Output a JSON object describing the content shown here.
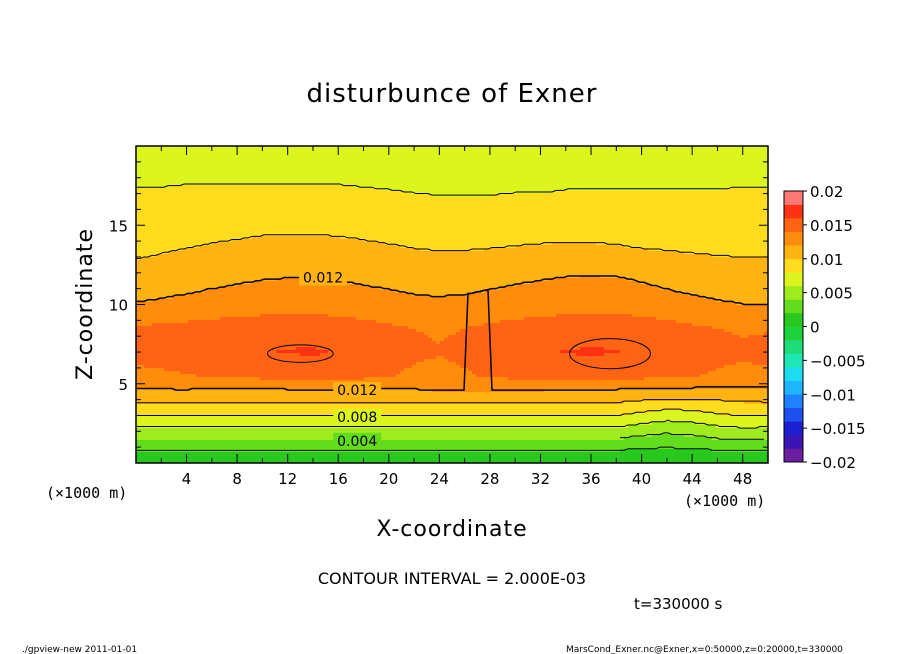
{
  "chart_data": {
    "type": "heatmap",
    "title": "disturbunce of Exner",
    "xlabel": "X-coordinate",
    "ylabel": "Z-coordinate",
    "x_unit_left": "(×1000 m)",
    "x_unit_right": "(×1000 m)",
    "xlim": [
      0,
      50
    ],
    "ylim": [
      0,
      20
    ],
    "x_ticks": [
      4,
      8,
      12,
      16,
      20,
      24,
      28,
      32,
      36,
      40,
      44,
      48
    ],
    "y_ticks": [
      5,
      10,
      15
    ],
    "contour_interval_text": "CONTOUR INTERVAL = 2.000E-03",
    "time_text": "t=330000 s",
    "contour_labels": [
      {
        "text": "0.012",
        "x": 14.8,
        "z": 11.7
      },
      {
        "text": "0.012",
        "x": 17.5,
        "z": 4.6
      },
      {
        "text": "0.008",
        "x": 17.5,
        "z": 2.9
      },
      {
        "text": "0.004",
        "x": 17.5,
        "z": 1.4
      }
    ],
    "colorbar": {
      "tick_labels": [
        "0.02",
        "0.015",
        "0.01",
        "0.005",
        "0",
        "−0.005",
        "−0.01",
        "−0.015",
        "−0.02"
      ],
      "levels": [
        -0.02,
        -0.018,
        -0.016,
        -0.014,
        -0.012,
        -0.01,
        -0.008,
        -0.006,
        -0.004,
        -0.002,
        0,
        0.002,
        0.004,
        0.006,
        0.008,
        0.01,
        0.012,
        0.014,
        0.016,
        0.018,
        0.02
      ],
      "colors": [
        "#6b1fa0",
        "#3c14b4",
        "#1e1ed2",
        "#1e50f0",
        "#1e82ff",
        "#1eb4ff",
        "#1edcf0",
        "#1ee6b4",
        "#1edc78",
        "#1ed23c",
        "#28c81e",
        "#64dc1e",
        "#a0eb1e",
        "#dcf51e",
        "#ffdc1e",
        "#ffb414",
        "#ff8c0a",
        "#ff6414",
        "#ff3214",
        "#ff7878"
      ]
    },
    "field_rows": [
      {
        "z": 0.3,
        "values": [
          0.0007,
          0.0007,
          0.0007,
          0.0007,
          0.0007,
          0.0007,
          0.0007,
          0.0007,
          0.0007,
          0.0007,
          0.0007,
          0.0007,
          0.0007,
          0.0007,
          0.0007,
          0.0007,
          0.0007,
          0.0007,
          0.0007,
          0.0007,
          0.0007,
          0.0007,
          0.0007,
          0.0007,
          0.0007,
          0.0007
        ]
      },
      {
        "z": 1.5,
        "values": [
          0.004,
          0.004,
          0.004,
          0.004,
          0.004,
          0.004,
          0.004,
          0.004,
          0.004,
          0.004,
          0.004,
          0.004,
          0.004,
          0.004,
          0.004,
          0.004,
          0.004,
          0.004,
          0.004,
          0.004,
          0.0035,
          0.0032,
          0.0035,
          0.004,
          0.0042,
          0.004
        ]
      },
      {
        "z": 3.0,
        "values": [
          0.0082,
          0.0082,
          0.0082,
          0.0082,
          0.0082,
          0.0082,
          0.0082,
          0.0082,
          0.0082,
          0.0082,
          0.0082,
          0.0082,
          0.0082,
          0.0082,
          0.0082,
          0.0082,
          0.0082,
          0.0082,
          0.0082,
          0.0082,
          0.0075,
          0.007,
          0.0072,
          0.0078,
          0.0082,
          0.0082
        ]
      },
      {
        "z": 4.5,
        "values": [
          0.0118,
          0.0118,
          0.0118,
          0.0117,
          0.0117,
          0.0117,
          0.0117,
          0.0117,
          0.0117,
          0.0117,
          0.0117,
          0.0118,
          0.0119,
          0.012,
          0.012,
          0.0119,
          0.0118,
          0.0117,
          0.0117,
          0.0117,
          0.0117,
          0.0116,
          0.0115,
          0.0114,
          0.0115,
          0.0116
        ]
      },
      {
        "z": 5.5,
        "values": [
          0.0135,
          0.0137,
          0.0139,
          0.0141,
          0.0143,
          0.0145,
          0.0147,
          0.0148,
          0.0147,
          0.0145,
          0.0141,
          0.0137,
          0.0135,
          0.0138,
          0.0142,
          0.0145,
          0.0147,
          0.0148,
          0.0148,
          0.0147,
          0.0145,
          0.0143,
          0.0141,
          0.0138,
          0.0135,
          0.0134
        ]
      },
      {
        "z": 7.0,
        "values": [
          0.0146,
          0.0148,
          0.0151,
          0.0154,
          0.0157,
          0.0159,
          0.0161,
          0.0162,
          0.0159,
          0.0154,
          0.0148,
          0.0143,
          0.0141,
          0.0144,
          0.015,
          0.0155,
          0.0158,
          0.0161,
          0.0162,
          0.0161,
          0.0157,
          0.0153,
          0.0149,
          0.0145,
          0.0143,
          0.0148
        ]
      },
      {
        "z": 8.5,
        "values": [
          0.0142,
          0.0144,
          0.0146,
          0.0148,
          0.015,
          0.0151,
          0.0152,
          0.0152,
          0.015,
          0.0147,
          0.0143,
          0.014,
          0.0138,
          0.014,
          0.0144,
          0.0147,
          0.0149,
          0.0151,
          0.0152,
          0.0151,
          0.0149,
          0.0146,
          0.0143,
          0.014,
          0.0138,
          0.0138
        ]
      },
      {
        "z": 10.0,
        "values": [
          0.0121,
          0.0123,
          0.0125,
          0.0127,
          0.0129,
          0.0131,
          0.0132,
          0.0132,
          0.013,
          0.0128,
          0.0126,
          0.0124,
          0.0123,
          0.0124,
          0.0126,
          0.0128,
          0.013,
          0.0132,
          0.0133,
          0.0133,
          0.0131,
          0.0128,
          0.0125,
          0.0122,
          0.012,
          0.0119
        ]
      },
      {
        "z": 11.5,
        "values": [
          0.0108,
          0.011,
          0.0113,
          0.0116,
          0.0118,
          0.012,
          0.0121,
          0.0121,
          0.012,
          0.0118,
          0.0116,
          0.0114,
          0.0113,
          0.0114,
          0.0116,
          0.0118,
          0.012,
          0.0122,
          0.0123,
          0.0122,
          0.0119,
          0.0115,
          0.0112,
          0.011,
          0.0108,
          0.0107
        ]
      },
      {
        "z": 13.5,
        "values": [
          0.0096,
          0.0098,
          0.01,
          0.0102,
          0.0104,
          0.0106,
          0.0107,
          0.0107,
          0.0106,
          0.0104,
          0.0102,
          0.01,
          0.0099,
          0.0099,
          0.01,
          0.0101,
          0.0102,
          0.0103,
          0.0103,
          0.0102,
          0.01,
          0.0099,
          0.0098,
          0.0097,
          0.0097,
          0.0097
        ]
      },
      {
        "z": 15.5,
        "values": [
          0.0088,
          0.0089,
          0.0089,
          0.009,
          0.009,
          0.0091,
          0.0091,
          0.0091,
          0.009,
          0.0089,
          0.0088,
          0.0088,
          0.0087,
          0.0087,
          0.0088,
          0.0088,
          0.0088,
          0.0088,
          0.0087,
          0.0086,
          0.0085,
          0.0085,
          0.0085,
          0.0085,
          0.0085,
          0.0085
        ]
      },
      {
        "z": 17.2,
        "values": [
          0.0081,
          0.0081,
          0.0082,
          0.0082,
          0.0082,
          0.0082,
          0.0082,
          0.0082,
          0.0082,
          0.0081,
          0.008,
          0.0079,
          0.0078,
          0.0078,
          0.0078,
          0.0079,
          0.0079,
          0.008,
          0.008,
          0.008,
          0.008,
          0.008,
          0.008,
          0.008,
          0.0081,
          0.0081
        ]
      },
      {
        "z": 18.8,
        "values": [
          0.0072,
          0.0072,
          0.0072,
          0.0072,
          0.0072,
          0.0072,
          0.0072,
          0.0072,
          0.0072,
          0.0072,
          0.0072,
          0.0072,
          0.0072,
          0.0072,
          0.0072,
          0.0072,
          0.0072,
          0.0072,
          0.0072,
          0.0072,
          0.0072,
          0.0072,
          0.0072,
          0.0072,
          0.0072,
          0.0072
        ]
      }
    ],
    "field_x_step": 2
  },
  "footer": {
    "left": "./gpview-new  2011-01-01",
    "right": "MarsCond_Exner.nc@Exner,x=0:50000,z=0:20000,t=330000"
  }
}
